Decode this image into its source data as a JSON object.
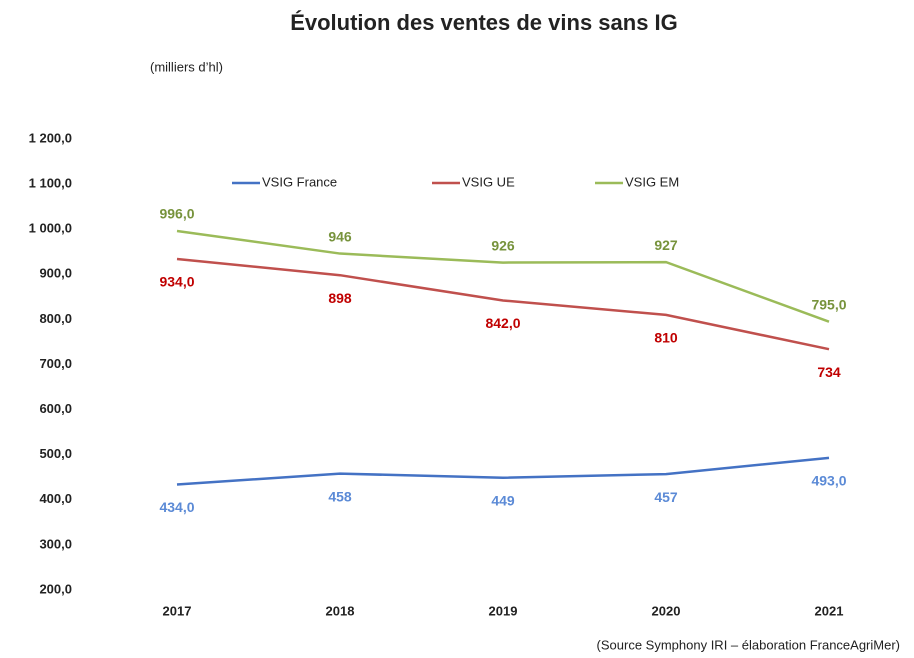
{
  "chart_data": {
    "type": "line",
    "title": "Évolution des ventes de vins sans IG",
    "subtitle": "(milliers d’hl)",
    "source": "(Source Symphony IRI – élaboration FranceAgriMer)",
    "categories": [
      "2017",
      "2018",
      "2019",
      "2020",
      "2021"
    ],
    "series": [
      {
        "name": "VSIG France",
        "color": "#4472c4",
        "label_color": "#5b8ad6",
        "values": [
          434,
          458,
          449,
          457,
          493
        ],
        "value_labels": [
          "434,0",
          "458",
          "449",
          "457",
          "493,0"
        ]
      },
      {
        "name": "VSIG UE",
        "color": "#c0504d",
        "label_color": "#c00000",
        "values": [
          934,
          898,
          842,
          810,
          734
        ],
        "value_labels": [
          "934,0",
          "898",
          "842,0",
          "810",
          "734"
        ]
      },
      {
        "name": "VSIG EM",
        "color": "#9bbb59",
        "label_color": "#77933c",
        "values": [
          996,
          946,
          926,
          927,
          795
        ],
        "value_labels": [
          "996,0",
          "946",
          "926",
          "927",
          "795,0"
        ]
      }
    ],
    "ylim": [
      200,
      1200
    ],
    "yticks": [
      {
        "value": 200,
        "label": "200,0"
      },
      {
        "value": 300,
        "label": "300,0"
      },
      {
        "value": 400,
        "label": "400,0"
      },
      {
        "value": 500,
        "label": "500,0"
      },
      {
        "value": 600,
        "label": "600,0"
      },
      {
        "value": 700,
        "label": "700,0"
      },
      {
        "value": 800,
        "label": "800,0"
      },
      {
        "value": 900,
        "label": "900,0"
      },
      {
        "value": 1000,
        "label": "1 000,0"
      },
      {
        "value": 1100,
        "label": "1 100,0"
      },
      {
        "value": 1200,
        "label": "1 200,0"
      }
    ],
    "grid": false,
    "legend": "top"
  }
}
